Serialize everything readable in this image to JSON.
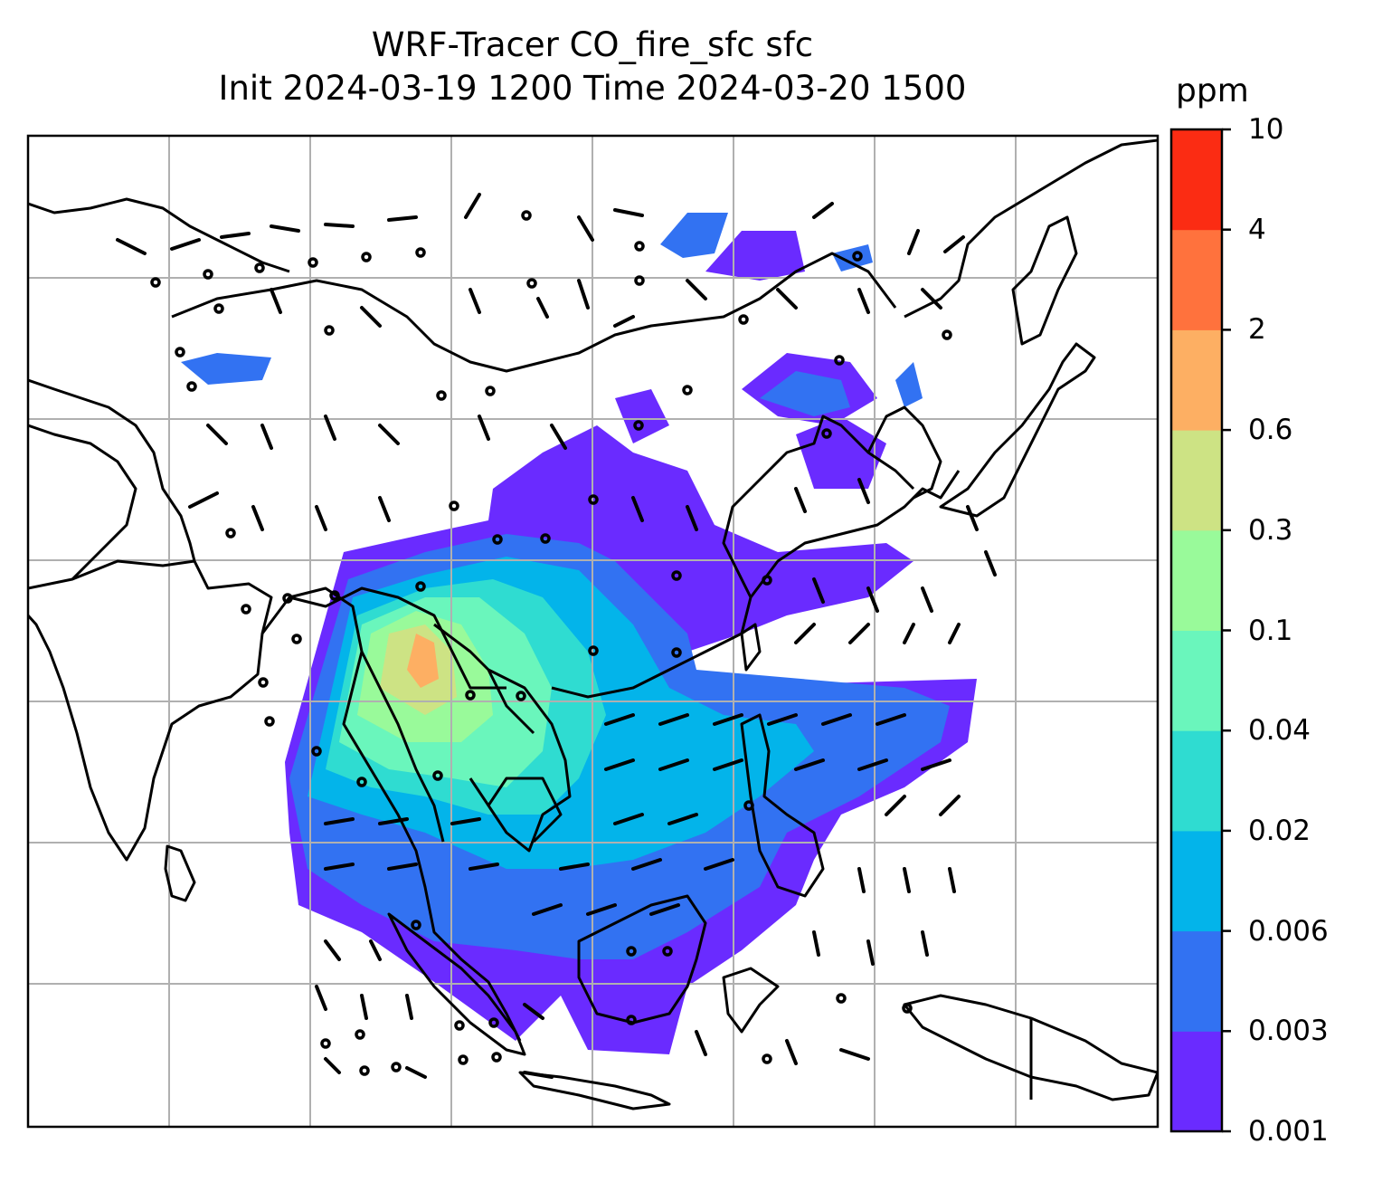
{
  "title": {
    "line1": "WRF-Tracer CO_fire_sfc sfc",
    "line2": "Init 2024-03-19 1200 Time 2024-03-20 1500"
  },
  "colorbar": {
    "unit": "ppm",
    "levels": [
      "0.001",
      "0.003",
      "0.006",
      "0.02",
      "0.04",
      "0.1",
      "0.3",
      "0.6",
      "2",
      "4",
      "10"
    ],
    "colors": [
      "#6a2bff",
      "#3272f2",
      "#03b4ea",
      "#2fdcd1",
      "#6af6bc",
      "#99fa9a",
      "#cde384",
      "#fdaf63",
      "#ff723d",
      "#fb2c13"
    ]
  },
  "map": {
    "gridline_color": "#b0b0b0",
    "coastline_color": "#000000",
    "background": "#ffffff"
  }
}
